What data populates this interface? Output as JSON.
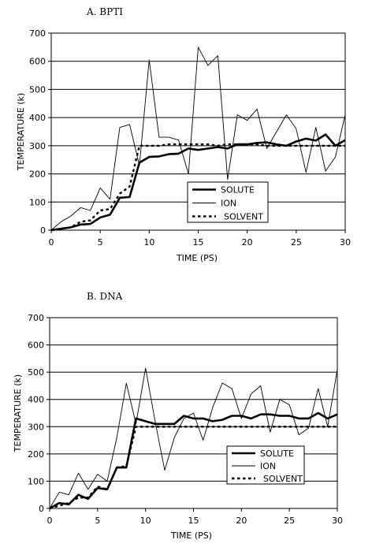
{
  "chart_data": [
    {
      "type": "line",
      "title": "A. BPTI",
      "xlabel": "TIME (PS)",
      "ylabel": "TEMPERATURE (k)",
      "xlim": [
        0,
        30
      ],
      "ylim": [
        0,
        700
      ],
      "xticks": [
        0,
        5,
        10,
        15,
        20,
        25,
        30
      ],
      "yticks": [
        0,
        100,
        200,
        300,
        400,
        500,
        600,
        700
      ],
      "grid": "horizontal",
      "legend_position": "center-right",
      "series": [
        {
          "name": "SOLUTE",
          "style": "thick",
          "x": [
            0,
            1,
            2,
            3,
            4,
            5,
            6,
            7,
            8,
            9,
            10,
            11,
            12,
            13,
            14,
            15,
            16,
            17,
            18,
            19,
            20,
            21,
            22,
            23,
            24,
            25,
            26,
            27,
            28,
            29,
            30
          ],
          "values": [
            0,
            5,
            10,
            20,
            22,
            45,
            55,
            115,
            118,
            240,
            260,
            262,
            270,
            272,
            290,
            285,
            290,
            295,
            290,
            305,
            305,
            310,
            312,
            305,
            300,
            315,
            325,
            318,
            340,
            300,
            320
          ]
        },
        {
          "name": "ION",
          "style": "thin",
          "x": [
            0,
            1,
            2,
            3,
            4,
            5,
            6,
            7,
            8,
            9,
            10,
            11,
            12,
            13,
            14,
            15,
            16,
            17,
            18,
            19,
            20,
            21,
            22,
            23,
            24,
            25,
            26,
            27,
            28,
            29,
            30
          ],
          "values": [
            0,
            30,
            50,
            80,
            70,
            150,
            110,
            365,
            375,
            230,
            605,
            330,
            330,
            320,
            200,
            650,
            585,
            620,
            180,
            410,
            390,
            430,
            290,
            350,
            410,
            360,
            205,
            365,
            210,
            260,
            410
          ]
        },
        {
          "name": "SOLVENT",
          "style": "dashed",
          "x": [
            0,
            1,
            2,
            3,
            4,
            5,
            6,
            7,
            8,
            9,
            10,
            11,
            12,
            13,
            14,
            15,
            16,
            17,
            18,
            19,
            20,
            21,
            22,
            23,
            24,
            25,
            26,
            27,
            28,
            29,
            30
          ],
          "values": [
            0,
            5,
            10,
            30,
            35,
            70,
            75,
            130,
            155,
            300,
            300,
            300,
            305,
            305,
            305,
            305,
            305,
            300,
            305,
            305,
            305,
            305,
            300,
            300,
            300,
            300,
            300,
            300,
            300,
            300,
            300
          ]
        }
      ]
    },
    {
      "type": "line",
      "title": "B. DNA",
      "xlabel": "TIME (PS)",
      "ylabel": "TEMPERATURE (k)",
      "xlim": [
        0,
        30
      ],
      "ylim": [
        0,
        700
      ],
      "xticks": [
        0,
        5,
        10,
        15,
        20,
        25,
        30
      ],
      "yticks": [
        0,
        100,
        200,
        300,
        400,
        500,
        600,
        700
      ],
      "grid": "horizontal",
      "legend_position": "center-right",
      "series": [
        {
          "name": "SOLUTE",
          "style": "thick",
          "x": [
            0,
            1,
            2,
            3,
            4,
            5,
            6,
            7,
            8,
            9,
            10,
            11,
            12,
            13,
            14,
            15,
            16,
            17,
            18,
            19,
            20,
            21,
            22,
            23,
            24,
            25,
            26,
            27,
            28,
            29,
            30
          ],
          "values": [
            0,
            20,
            15,
            50,
            35,
            75,
            70,
            150,
            150,
            330,
            320,
            310,
            310,
            310,
            340,
            330,
            330,
            320,
            325,
            340,
            340,
            330,
            345,
            345,
            340,
            340,
            330,
            330,
            350,
            330,
            345
          ]
        },
        {
          "name": "ION",
          "style": "thin",
          "x": [
            0,
            1,
            2,
            3,
            4,
            5,
            6,
            7,
            8,
            9,
            10,
            11,
            12,
            13,
            14,
            15,
            16,
            17,
            18,
            19,
            20,
            21,
            22,
            23,
            24,
            25,
            26,
            27,
            28,
            29,
            30
          ],
          "values": [
            0,
            60,
            50,
            130,
            70,
            125,
            100,
            260,
            460,
            310,
            515,
            320,
            140,
            260,
            330,
            350,
            250,
            370,
            460,
            440,
            330,
            420,
            450,
            280,
            400,
            380,
            270,
            295,
            440,
            300,
            510
          ]
        },
        {
          "name": "SOLVENT",
          "style": "dashed",
          "x": [
            0,
            1,
            2,
            3,
            4,
            5,
            6,
            7,
            8,
            9,
            10,
            11,
            12,
            13,
            14,
            15,
            16,
            17,
            18,
            19,
            20,
            21,
            22,
            23,
            24,
            25,
            26,
            27,
            28,
            29,
            30
          ],
          "values": [
            0,
            10,
            20,
            40,
            40,
            80,
            70,
            150,
            155,
            300,
            300,
            300,
            300,
            300,
            300,
            300,
            300,
            300,
            300,
            300,
            300,
            300,
            300,
            300,
            300,
            300,
            300,
            300,
            300,
            300,
            300
          ]
        }
      ]
    }
  ]
}
